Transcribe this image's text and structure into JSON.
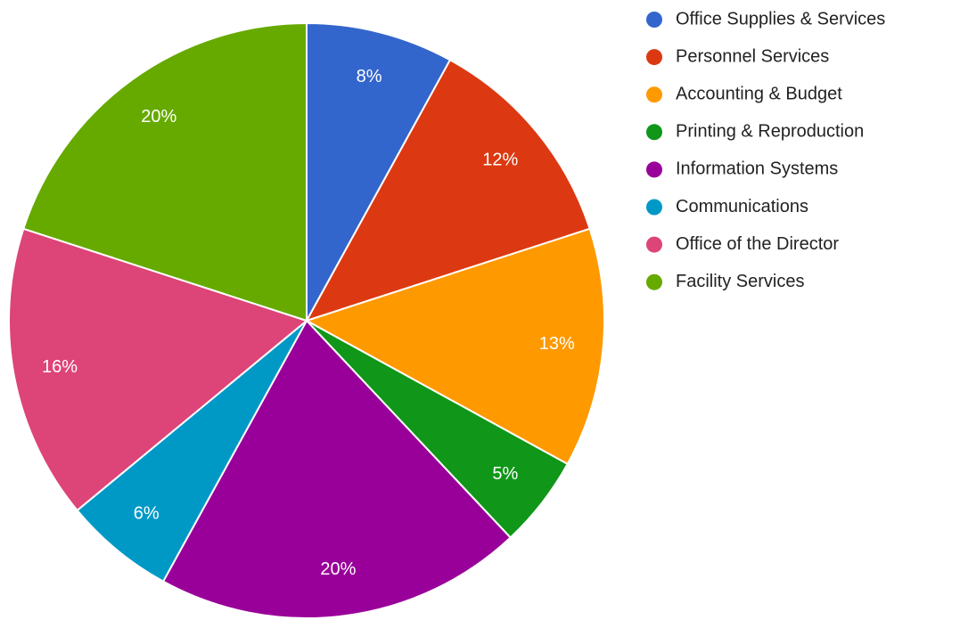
{
  "chart_data": {
    "type": "pie",
    "categories": [
      "Office Supplies & Services",
      "Personnel Services",
      "Accounting & Budget",
      "Printing & Reproduction",
      "Information Systems",
      "Communications",
      "Office of the Director",
      "Facility Services"
    ],
    "values": [
      8,
      12,
      13,
      5,
      20,
      6,
      16,
      20
    ],
    "value_labels": [
      "8%",
      "12%",
      "13%",
      "5%",
      "20%",
      "6%",
      "16%",
      "20%"
    ],
    "colors": [
      "#3366cc",
      "#dc3912",
      "#ff9900",
      "#109618",
      "#990099",
      "#0099c6",
      "#dd4477",
      "#66aa00"
    ],
    "legend": "right"
  }
}
